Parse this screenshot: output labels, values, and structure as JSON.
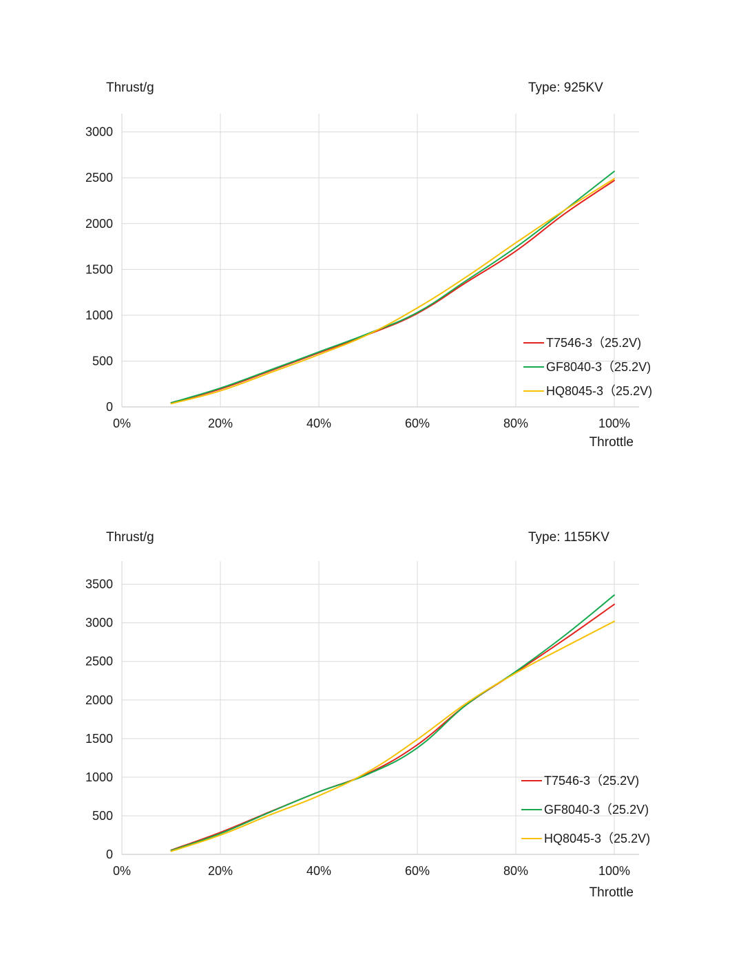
{
  "chart_data": [
    {
      "type": "line",
      "ylabel": "Thrust/g",
      "xlabel": "Throttle",
      "type_label": "Type: 925KV",
      "x_ticks": [
        "0%",
        "20%",
        "40%",
        "60%",
        "80%",
        "100%"
      ],
      "y_ticks": [
        "0",
        "500",
        "1000",
        "1500",
        "2000",
        "2500",
        "3000"
      ],
      "xlim": [
        0,
        100
      ],
      "ylim": [
        0,
        3200
      ],
      "grid": true,
      "legend_position": "lower-right",
      "x": [
        10,
        20,
        30,
        40,
        50,
        60,
        70,
        80,
        90,
        100
      ],
      "series": [
        {
          "name": "T7546-3（25.2V)",
          "color": "#e3221b",
          "values": [
            45,
            195,
            390,
            590,
            790,
            1020,
            1360,
            1700,
            2110,
            2470
          ]
        },
        {
          "name": "GF8040-3（25.2V)",
          "color": "#16a94f",
          "values": [
            45,
            205,
            400,
            600,
            800,
            1030,
            1380,
            1740,
            2150,
            2570
          ]
        },
        {
          "name": "HQ8045-3（25.2V)",
          "color": "#f6c000",
          "values": [
            35,
            175,
            370,
            570,
            790,
            1080,
            1420,
            1790,
            2150,
            2490
          ]
        }
      ]
    },
    {
      "type": "line",
      "ylabel": "Thrust/g",
      "xlabel": "Throttle",
      "type_label": "Type: 1155KV",
      "x_ticks": [
        "0%",
        "20%",
        "40%",
        "60%",
        "80%",
        "100%"
      ],
      "y_ticks": [
        "0",
        "500",
        "1000",
        "1500",
        "2000",
        "2500",
        "3000",
        "3500"
      ],
      "xlim": [
        0,
        100
      ],
      "ylim": [
        0,
        3800
      ],
      "grid": true,
      "legend_position": "lower-right",
      "x": [
        10,
        20,
        30,
        40,
        50,
        60,
        70,
        80,
        90,
        100
      ],
      "series": [
        {
          "name": "T7546-3（25.2V)",
          "color": "#e3221b",
          "values": [
            55,
            285,
            550,
            810,
            1050,
            1420,
            1940,
            2360,
            2790,
            3240
          ]
        },
        {
          "name": "GF8040-3（25.2V)",
          "color": "#16a94f",
          "values": [
            50,
            270,
            545,
            810,
            1040,
            1380,
            1940,
            2370,
            2840,
            3360
          ]
        },
        {
          "name": "HQ8045-3（25.2V)",
          "color": "#f6c000",
          "values": [
            40,
            250,
            510,
            760,
            1070,
            1490,
            1960,
            2350,
            2690,
            3020
          ]
        }
      ]
    }
  ]
}
